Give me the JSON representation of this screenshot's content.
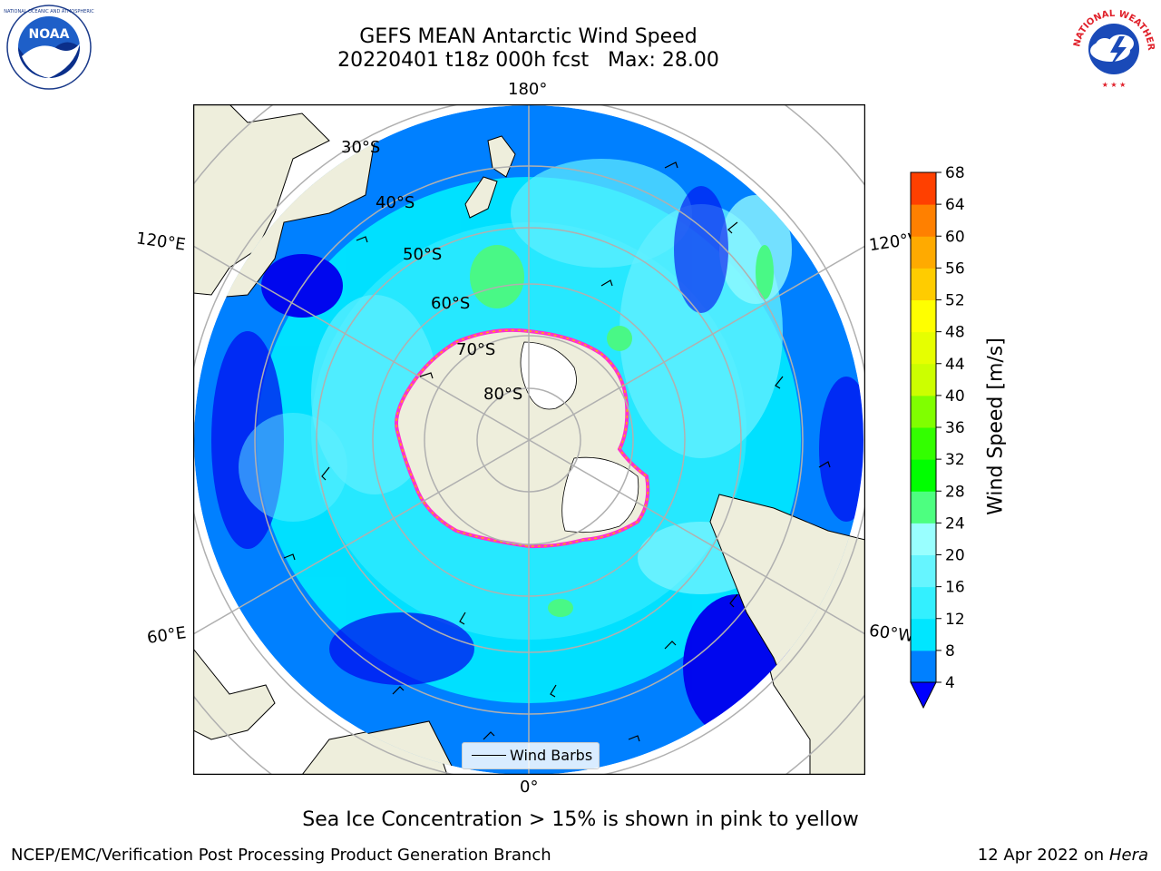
{
  "header": {
    "title_line1": "GEFS MEAN Antarctic Wind Speed",
    "title_line2": "20220401 t18z 000h fcst   Max: 28.00"
  },
  "logos": {
    "left": "NOAA",
    "left_ring_text": "NATIONAL OCEANIC AND ATMOSPHERIC ADMINISTRATION · U.S. DEPARTMENT OF COMMERCE",
    "right_ring_text": "NATIONAL WEATHER SERVICE"
  },
  "map": {
    "longitude_labels": {
      "top": "180°",
      "bottom": "0°",
      "upper_left": "120°E",
      "upper_right": "120°W",
      "lower_left": "60°E",
      "lower_right": "60°W"
    },
    "latitude_labels": [
      "30°S",
      "40°S",
      "50°S",
      "60°S",
      "70°S",
      "80°S"
    ],
    "legend_label": "Wind Barbs",
    "colors": {
      "land": "#eeeedc",
      "ocean_fill": "#0000ee",
      "ice_edge": "#ff33cc",
      "ice_edge_inner": "#ffb000",
      "grid": "#b0b0b0"
    }
  },
  "colorbar": {
    "label": "Wind Speed [m/s]",
    "ticks": [
      "4",
      "8",
      "12",
      "16",
      "20",
      "24",
      "28",
      "32",
      "36",
      "40",
      "44",
      "48",
      "52",
      "56",
      "60",
      "64",
      "68"
    ],
    "colors": [
      "#0080ff",
      "#00e6ff",
      "#33f0ff",
      "#66f5ff",
      "#99ffff",
      "#4dff80",
      "#00ff00",
      "#33ff00",
      "#80ff00",
      "#ccff00",
      "#e6ff00",
      "#ffff00",
      "#ffcc00",
      "#ffaa00",
      "#ff8000",
      "#ff4000",
      "#ff0000"
    ],
    "extend_color": "#0000ff"
  },
  "footer": {
    "note": "Sea Ice Concentration > 15% is shown in pink to yellow",
    "credit": "NCEP/EMC/Verification Post Processing Product Generation Branch",
    "date_prefix": "12 Apr 2022 on ",
    "host": "Hera"
  }
}
